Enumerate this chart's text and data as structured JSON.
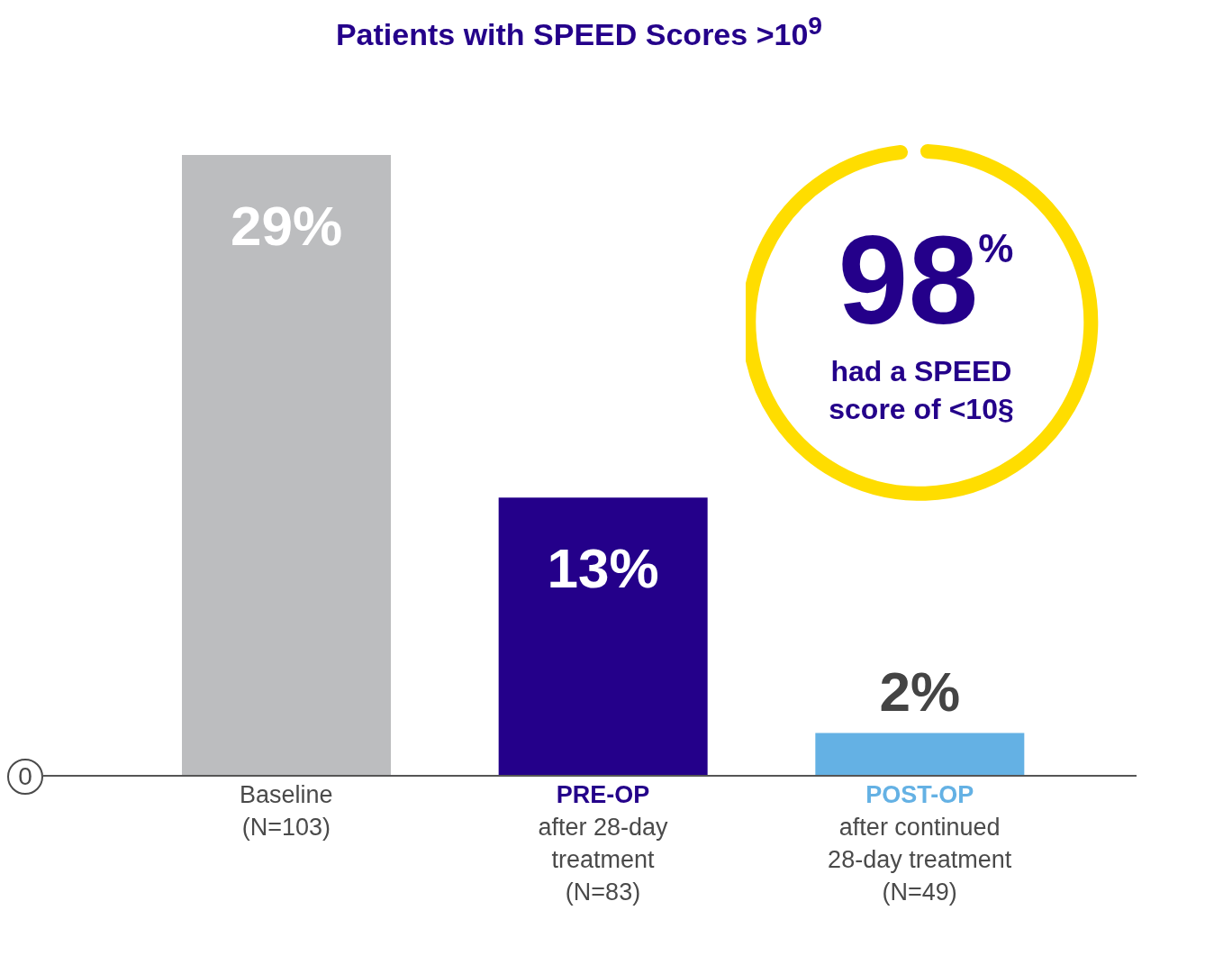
{
  "chart_data": {
    "type": "bar",
    "title": "Patients with SPEED Scores >10$^{9}$",
    "categories": [
      "Baseline\n(N=103)",
      "PRE-OP\nafter 28-day\ntreatment\n(N=83)",
      "POST-OP\nafter continued\n28-day treatment\n(N=49)"
    ],
    "values": [
      29,
      13,
      2
    ],
    "value_labels": [
      "29%",
      "13%",
      "2%"
    ],
    "colors": [
      "#bcbdbf",
      "#24008a",
      "#64b1e4"
    ],
    "annotations": [
      "98%",
      "had a SPEED score of <10§",
      "0"
    ]
  }
}
